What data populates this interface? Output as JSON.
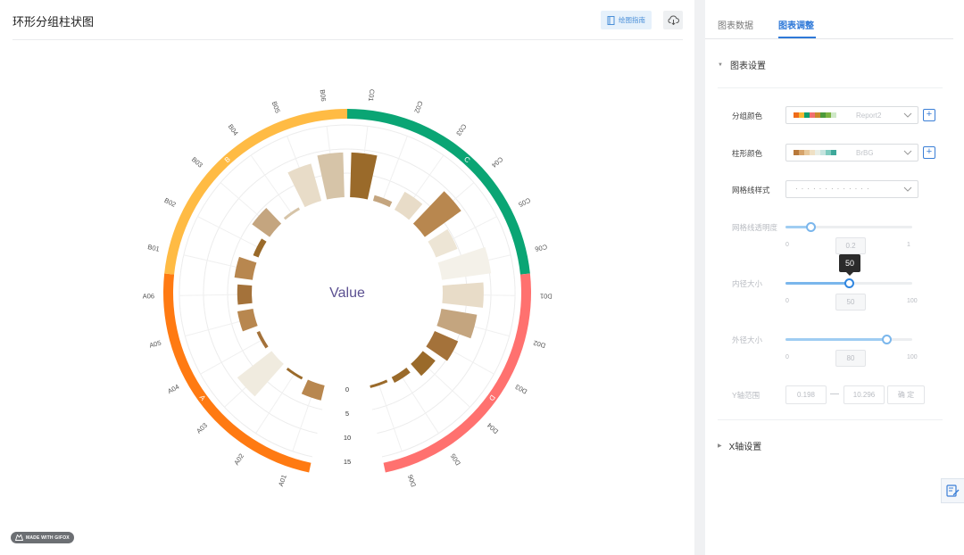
{
  "header": {
    "title": "环形分组柱状图",
    "guide_label": "绘图指南"
  },
  "badge": {
    "text": "MADE WITH GIFOX"
  },
  "tabs": [
    {
      "label": "图表数据"
    },
    {
      "label": "图表调整"
    }
  ],
  "settings": {
    "section_title": "图表设置",
    "group_color": {
      "label": "分组颜色",
      "value": "Report2",
      "swatches": [
        "#ef6c1a",
        "#f7b733",
        "#0e9f6e",
        "#f07070",
        "#c98a2b",
        "#4c9a3a",
        "#7cb342",
        "#cfe8c8"
      ]
    },
    "bar_color": {
      "label": "柱形颜色",
      "value": "BrBG",
      "swatches": [
        "#b8793a",
        "#d6a36a",
        "#e7c89c",
        "#efe0c4",
        "#e8eee7",
        "#c6e4df",
        "#7fcbbf",
        "#3ea89a"
      ]
    },
    "grid_style": {
      "label": "网格线样式"
    },
    "grid_opacity": {
      "label": "网格线透明度",
      "min": "0",
      "max": "1",
      "value": "0.2"
    },
    "inner_radius": {
      "label": "内径大小",
      "min": "0",
      "max": "100",
      "value": "50",
      "tooltip": "50"
    },
    "outer_radius": {
      "label": "外径大小",
      "min": "0",
      "max": "100",
      "value": "80"
    },
    "y_range": {
      "label": "Y轴范围",
      "min": "0.198",
      "max": "10.296",
      "confirm": "确 定"
    }
  },
  "x_axis_section": {
    "title": "X轴设置"
  },
  "chart_data": {
    "type": "bar",
    "center_label": "Value",
    "groups": [
      {
        "name": "A",
        "color": "#ff7a12"
      },
      {
        "name": "B",
        "color": "#ffbb44"
      },
      {
        "name": "C",
        "color": "#0aa574"
      },
      {
        "name": "D",
        "color": "#ff716f"
      }
    ],
    "categories": [
      "A01",
      "A02",
      "A03",
      "A04",
      "A05",
      "A06",
      "B01",
      "B02",
      "B03",
      "B04",
      "B05",
      "B06",
      "C01",
      "C02",
      "C03",
      "C04",
      "C05",
      "C06",
      "D01",
      "D02",
      "D03",
      "D04",
      "D05",
      "D06"
    ],
    "values": [
      3.2,
      0.3,
      9.0,
      0.7,
      3.3,
      3.0,
      3.8,
      1.2,
      4.5,
      0.3,
      8.0,
      9.3,
      9.3,
      1.2,
      4.3,
      9.3,
      4.8,
      10.3,
      8.5,
      7.5,
      5.3,
      3.3,
      1.3,
      0.2
    ],
    "bar_colors": [
      "#b8874f",
      "#9a6a2a",
      "#f0ebdf",
      "#a4723a",
      "#b8874f",
      "#a4723a",
      "#b8874f",
      "#9a6a2a",
      "#c4a57f",
      "#d6c4a8",
      "#e8dcc8",
      "#d6c4a8",
      "#9a6a2a",
      "#c4a57f",
      "#e8dcc8",
      "#b8874f",
      "#ede5d5",
      "#f4f1e9",
      "#e8dcc8",
      "#c4a57f",
      "#a4723a",
      "#9a6a2a",
      "#9a6a2a",
      "#9a6a2a"
    ],
    "y_ticks": [
      "0",
      "5",
      "10",
      "15"
    ],
    "ylim": [
      0,
      15
    ],
    "grid": true
  }
}
